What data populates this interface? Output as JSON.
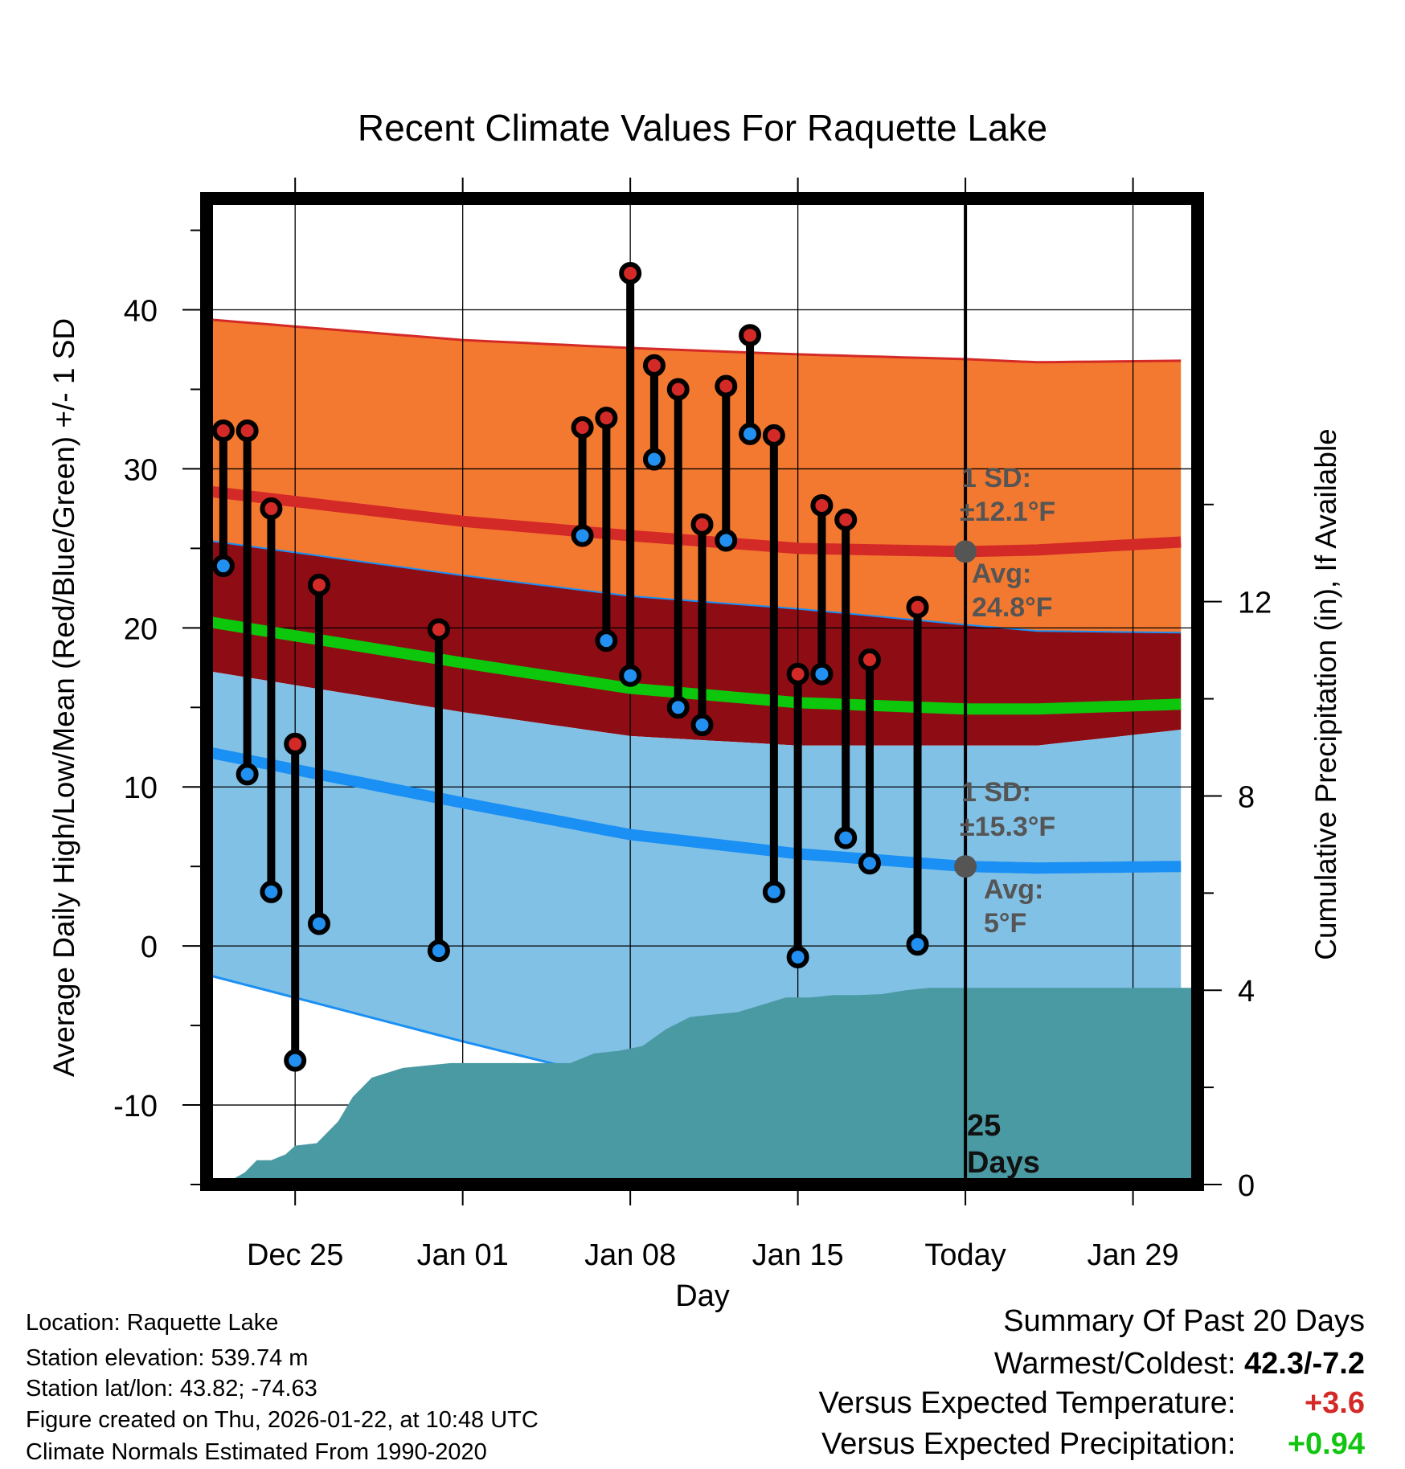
{
  "chart_data": {
    "type": "line",
    "title": "Recent Climate Values For Raquette Lake",
    "xlabel": "Day",
    "ylabel": "Average Daily High/Low/Mean (Red/Blue/Green) +/- 1 SD",
    "y2label": "Cumulative Precipitation (in), If Available",
    "xlim": [
      -0.7,
      40.7
    ],
    "ylim": [
      -15,
      47
    ],
    "y2lim": [
      0,
      20.3
    ],
    "x_ticks": [
      3,
      10,
      17,
      24,
      31,
      38
    ],
    "x_tick_labels": [
      "Dec 25",
      "Jan 01",
      "Jan 08",
      "Jan 15",
      "Today",
      "Jan 29"
    ],
    "y_ticks": [
      -10,
      0,
      10,
      20,
      30,
      40
    ],
    "y_tick_labels": [
      "-10",
      "0",
      "10",
      "20",
      "30",
      "40"
    ],
    "y2_ticks": [
      0,
      4,
      8,
      12
    ],
    "y2_tick_labels": [
      "0",
      "4",
      "8",
      "12"
    ],
    "today_x": 31,
    "today_label": "25",
    "today_label2": "Days",
    "normals": {
      "x": [
        0,
        10,
        17,
        24,
        31,
        34,
        40
      ],
      "high_mean": [
        28.6,
        26.7,
        25.8,
        25.0,
        24.8,
        24.9,
        25.4
      ],
      "high_upper": [
        39.4,
        38.1,
        37.6,
        37.2,
        36.9,
        36.7,
        36.8
      ],
      "low_mean": [
        12.2,
        9.0,
        7.0,
        5.8,
        5.0,
        4.9,
        5.0
      ],
      "low_lower": [
        -1.8,
        -6.0,
        -8.6,
        -9.0,
        -10.3,
        -10.5,
        -10.4
      ],
      "mean": [
        20.4,
        17.8,
        16.2,
        15.3,
        14.9,
        14.9,
        15.2
      ],
      "band_bottom": [
        17.3,
        14.7,
        13.2,
        12.6,
        12.6,
        12.6,
        13.6
      ],
      "band_top": [
        25.5,
        23.3,
        22.0,
        21.2,
        20.2,
        19.8,
        19.7
      ]
    },
    "observations": [
      {
        "x": 0,
        "high": 32.4,
        "low": 23.9
      },
      {
        "x": 1,
        "high": 32.4,
        "low": 10.8
      },
      {
        "x": 2,
        "high": 27.5,
        "low": 3.4
      },
      {
        "x": 3,
        "high": 12.7,
        "low": -7.2
      },
      {
        "x": 4,
        "high": 22.7,
        "low": 1.4
      },
      {
        "x": 9,
        "high": 19.9,
        "low": -0.3
      },
      {
        "x": 15,
        "high": 32.6,
        "low": 25.8
      },
      {
        "x": 16,
        "high": 33.2,
        "low": 19.2
      },
      {
        "x": 17,
        "high": 42.3,
        "low": 17.0
      },
      {
        "x": 18,
        "high": 36.5,
        "low": 30.6
      },
      {
        "x": 19,
        "high": 35.0,
        "low": 15.0
      },
      {
        "x": 20,
        "high": 26.5,
        "low": 13.9
      },
      {
        "x": 21,
        "high": 35.2,
        "low": 25.5
      },
      {
        "x": 22,
        "high": 38.4,
        "low": 32.2
      },
      {
        "x": 23,
        "high": 32.1,
        "low": 3.4
      },
      {
        "x": 24,
        "high": 17.1,
        "low": -0.7
      },
      {
        "x": 25,
        "high": 27.7,
        "low": 17.1
      },
      {
        "x": 26,
        "high": 26.8,
        "low": 6.8
      },
      {
        "x": 27,
        "high": 18.0,
        "low": 5.2
      },
      {
        "x": 29,
        "high": 21.3,
        "low": 0.1
      }
    ],
    "precipitation": {
      "x": [
        0,
        0.9,
        1.4,
        2.0,
        2.6,
        3.0,
        3.9,
        4.8,
        5.4,
        6.2,
        7.5,
        8.5,
        9.5,
        10.5,
        11.5,
        12.5,
        13.5,
        14.5,
        15.5,
        16.5,
        17.5,
        18.5,
        19.5,
        20.5,
        21.5,
        22.5,
        23.5,
        24.5,
        25.5,
        26.5,
        27.5,
        28.5,
        29.5,
        31,
        40
      ],
      "cumulative_in": [
        0,
        0.25,
        0.5,
        0.5,
        0.62,
        0.8,
        0.85,
        1.3,
        1.8,
        2.2,
        2.4,
        2.45,
        2.5,
        2.5,
        2.5,
        2.5,
        2.5,
        2.5,
        2.7,
        2.75,
        2.85,
        3.2,
        3.45,
        3.5,
        3.55,
        3.7,
        3.85,
        3.85,
        3.9,
        3.9,
        3.92,
        4.0,
        4.05,
        4.05,
        4.05
      ]
    },
    "annotations": {
      "high_sd_line1": "1 SD:",
      "high_sd_line2": "±12.1°F",
      "high_avg_line1": "Avg:",
      "high_avg_line2": "24.8°F",
      "high_avg_value": 24.8,
      "low_sd_line1": "1 SD:",
      "low_sd_line2": "±15.3°F",
      "low_avg_line1": "Avg:",
      "low_avg_line2": "5°F",
      "low_avg_value": 5.0
    }
  },
  "colors": {
    "high_band": "#f47930",
    "overlap_band": "#8e0d14",
    "low_band": "#82c1e6",
    "high_line": "#d42a27",
    "low_line": "#1a8ff4",
    "mean_line": "#0dc70d",
    "precip": "#4a9aa3",
    "high_marker": "#d42a27",
    "low_marker": "#2290f0",
    "annotation": "#555555",
    "positive_temp": "#d42a27",
    "positive_precip": "#11c511"
  },
  "footer": {
    "location": "Location: Raquette Lake",
    "elevation": "Station elevation: 539.74 m",
    "latlon": "Station lat/lon: 43.82; -74.63",
    "created": "Figure created on Thu, 2026-01-22, at 10:48 UTC",
    "normals": "Climate Normals Estimated From 1990-2020"
  },
  "summary": {
    "title": "Summary Of Past 20 Days",
    "warm_cold_label": "Warmest/Coldest:",
    "warm_cold_value": "42.3/-7.2",
    "temp_label": "Versus Expected Temperature:",
    "temp_value": "+3.6",
    "precip_label": "Versus Expected Precipitation:",
    "precip_value": "+0.94"
  }
}
